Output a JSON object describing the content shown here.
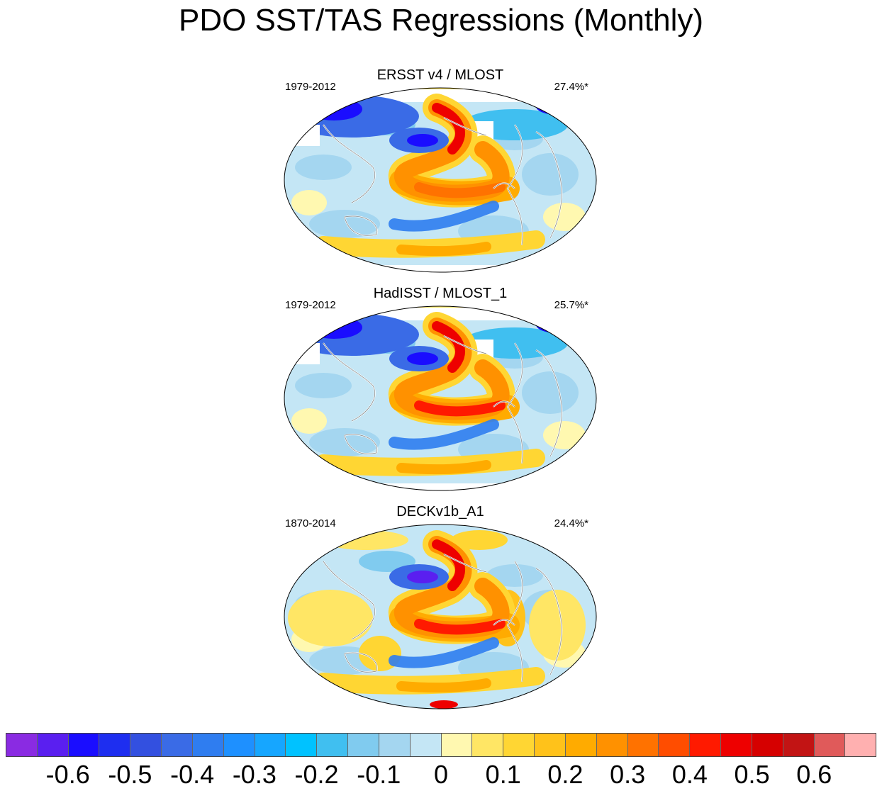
{
  "title": "PDO SST/TAS Regressions (Monthly)",
  "panels": [
    {
      "title": "ERSST v4 / MLOST",
      "period": "1979-2012",
      "variance": "27.4%*",
      "variant": "ersst"
    },
    {
      "title": "HadISST / MLOST_1",
      "period": "1979-2012",
      "variance": "25.7%*",
      "variant": "hadisst"
    },
    {
      "title": "DECKv1b_A1",
      "period": "1870-2014",
      "variance": "24.4%*",
      "variant": "deck"
    }
  ],
  "colorbar": {
    "colors": [
      "#8a2be2",
      "#5a1ff0",
      "#1a0dff",
      "#1e2ef0",
      "#3350e0",
      "#3a6be6",
      "#2f7df0",
      "#1e90ff",
      "#16a6ff",
      "#00c2ff",
      "#40bff0",
      "#80cbef",
      "#a4d6f0",
      "#c4e6f5",
      "#fff8b0",
      "#ffe665",
      "#ffd633",
      "#ffc21a",
      "#ffab00",
      "#ff9100",
      "#ff7200",
      "#ff4d00",
      "#ff1a00",
      "#ee0000",
      "#d60000",
      "#c21414",
      "#e05a5a",
      "#ffb0b0"
    ],
    "tick_labels": [
      "-0.6",
      "-0.5",
      "-0.4",
      "-0.3",
      "-0.2",
      "-0.1",
      "0",
      "0.1",
      "0.2",
      "0.3",
      "0.4",
      "0.5",
      "0.6"
    ]
  }
}
